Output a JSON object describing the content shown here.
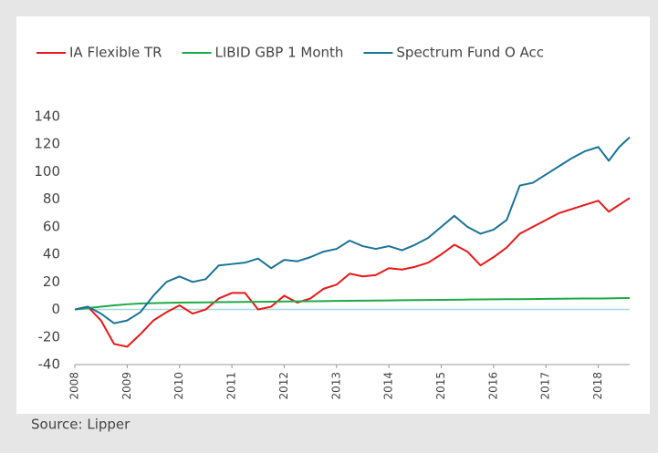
{
  "chart_data": {
    "type": "line",
    "source": "Source: Lipper",
    "x": [
      2008,
      2008.25,
      2008.5,
      2008.75,
      2009,
      2009.25,
      2009.5,
      2009.75,
      2010,
      2010.25,
      2010.5,
      2010.75,
      2011,
      2011.25,
      2011.5,
      2011.75,
      2012,
      2012.25,
      2012.5,
      2012.75,
      2013,
      2013.25,
      2013.5,
      2013.75,
      2014,
      2014.25,
      2014.5,
      2014.75,
      2015,
      2015.25,
      2015.5,
      2015.75,
      2016,
      2016.25,
      2016.5,
      2016.75,
      2017,
      2017.25,
      2017.5,
      2017.75,
      2018,
      2018.2,
      2018.4,
      2018.6
    ],
    "series": [
      {
        "name": "IA Flexible TR",
        "color": "#e8191a",
        "values": [
          0,
          2,
          -8,
          -25,
          -27,
          -18,
          -8,
          -2,
          3,
          -3,
          0,
          8,
          12,
          12,
          0,
          2,
          10,
          5,
          8,
          15,
          18,
          26,
          24,
          25,
          30,
          29,
          31,
          34,
          40,
          47,
          42,
          32,
          38,
          45,
          55,
          60,
          65,
          70,
          73,
          76,
          79,
          71,
          76,
          81
        ]
      },
      {
        "name": "LIBID GBP 1 Month",
        "color": "#1daa48",
        "values": [
          0,
          1,
          2,
          3,
          3.8,
          4.3,
          4.6,
          4.8,
          5,
          5.1,
          5.2,
          5.3,
          5.4,
          5.5,
          5.6,
          5.7,
          5.8,
          5.9,
          6,
          6.1,
          6.2,
          6.3,
          6.4,
          6.5,
          6.6,
          6.7,
          6.8,
          6.9,
          7,
          7.1,
          7.2,
          7.3,
          7.4,
          7.5,
          7.5,
          7.6,
          7.7,
          7.8,
          7.9,
          8,
          8,
          8.1,
          8.2,
          8.3
        ]
      },
      {
        "name": "Spectrum Fund O Acc",
        "color": "#1a7398",
        "values": [
          0,
          2,
          -3,
          -10,
          -8,
          -2,
          10,
          20,
          24,
          20,
          22,
          32,
          33,
          34,
          37,
          30,
          36,
          35,
          38,
          42,
          44,
          50,
          46,
          44,
          46,
          43,
          47,
          52,
          60,
          68,
          60,
          55,
          58,
          65,
          90,
          92,
          98,
          104,
          110,
          115,
          118,
          108,
          118,
          125
        ]
      }
    ],
    "xlim": [
      2008,
      2018.6
    ],
    "xticks": [
      2008,
      2009,
      2010,
      2011,
      2012,
      2013,
      2014,
      2015,
      2016,
      2017,
      2018
    ],
    "ylim": [
      -40,
      140
    ],
    "yticks": [
      -40,
      -20,
      0,
      20,
      40,
      60,
      80,
      100,
      120,
      140
    ],
    "grid": false
  }
}
